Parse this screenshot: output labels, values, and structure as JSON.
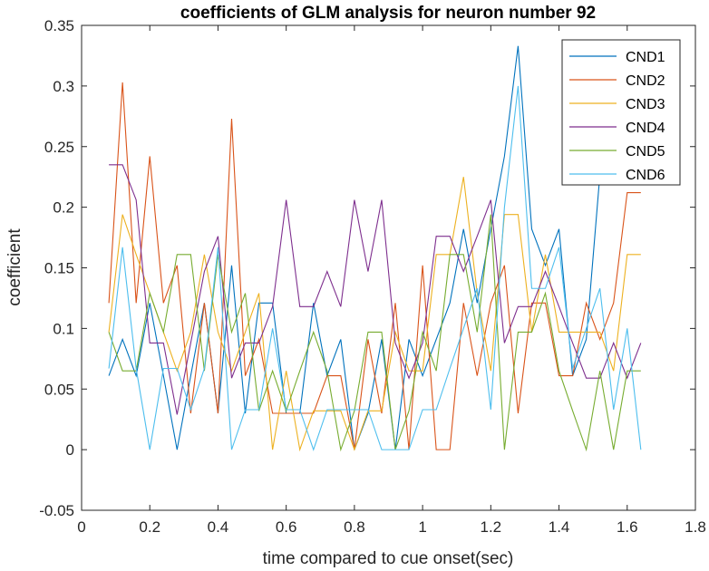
{
  "chart_data": {
    "type": "line",
    "title": "coefficients of GLM analysis for neuron number 92",
    "xlabel": "time compared to cue onset(sec)",
    "ylabel": "coefficient",
    "xlim": [
      0,
      1.8
    ],
    "ylim": [
      -0.05,
      0.35
    ],
    "xticks": [
      0,
      0.2,
      0.4,
      0.6,
      0.8,
      1,
      1.2,
      1.4,
      1.6,
      1.8
    ],
    "yticks": [
      -0.05,
      0,
      0.05,
      0.1,
      0.15,
      0.2,
      0.25,
      0.3,
      0.35
    ],
    "xtick_labels": [
      "0",
      "0.2",
      "0.4",
      "0.6",
      "0.8",
      "1",
      "1.2",
      "1.4",
      "1.6",
      "1.8"
    ],
    "ytick_labels": [
      "-0.05",
      "0",
      "0.05",
      "0.1",
      "0.15",
      "0.2",
      "0.25",
      "0.3",
      "0.35"
    ],
    "grid": false,
    "legend_position": "top-right",
    "x": [
      0.08,
      0.12,
      0.16,
      0.2,
      0.24,
      0.28,
      0.32,
      0.36,
      0.4,
      0.44,
      0.48,
      0.52,
      0.56,
      0.6,
      0.64,
      0.68,
      0.72,
      0.76,
      0.8,
      0.84,
      0.88,
      0.92,
      0.96,
      1.0,
      1.04,
      1.08,
      1.12,
      1.16,
      1.2,
      1.24,
      1.28,
      1.32,
      1.36,
      1.4,
      1.44,
      1.48,
      1.52,
      1.56,
      1.6,
      1.64
    ],
    "series": [
      {
        "name": "CND1",
        "color": "#0072BD",
        "values": [
          0.061,
          0.091,
          0.061,
          0.121,
          0.061,
          0.0,
          0.061,
          0.121,
          0.03,
          0.152,
          0.03,
          0.121,
          0.121,
          0.03,
          0.03,
          0.121,
          0.061,
          0.091,
          0.0,
          0.03,
          0.091,
          0.0,
          0.091,
          0.061,
          0.091,
          0.121,
          0.182,
          0.121,
          0.182,
          0.242,
          0.333,
          0.182,
          0.152,
          0.182,
          0.061,
          0.091,
          0.227,
          0.242,
          0.242,
          0.242
        ]
      },
      {
        "name": "CND2",
        "color": "#D95319",
        "values": [
          0.121,
          0.303,
          0.121,
          0.242,
          0.121,
          0.152,
          0.03,
          0.121,
          0.03,
          0.273,
          0.061,
          0.091,
          0.03,
          0.03,
          0.03,
          0.03,
          0.061,
          0.061,
          0.0,
          0.091,
          0.03,
          0.121,
          0.0,
          0.152,
          0.0,
          0.0,
          0.121,
          0.061,
          0.121,
          0.152,
          0.03,
          0.121,
          0.121,
          0.061,
          0.061,
          0.121,
          0.091,
          0.121,
          0.212,
          0.212
        ]
      },
      {
        "name": "CND3",
        "color": "#EDB120",
        "values": [
          0.097,
          0.194,
          0.161,
          0.129,
          0.097,
          0.065,
          0.097,
          0.161,
          0.097,
          0.065,
          0.097,
          0.129,
          0.0,
          0.065,
          0.0,
          0.032,
          0.032,
          0.032,
          0.0,
          0.032,
          0.032,
          0.097,
          0.065,
          0.065,
          0.161,
          0.161,
          0.225,
          0.129,
          0.065,
          0.194,
          0.194,
          0.097,
          0.161,
          0.097,
          0.097,
          0.097,
          0.097,
          0.065,
          0.161,
          0.161
        ]
      },
      {
        "name": "CND4",
        "color": "#7E2F8E",
        "values": [
          0.235,
          0.235,
          0.206,
          0.088,
          0.088,
          0.029,
          0.088,
          0.147,
          0.176,
          0.059,
          0.088,
          0.088,
          0.118,
          0.206,
          0.118,
          0.118,
          0.147,
          0.118,
          0.206,
          0.147,
          0.206,
          0.088,
          0.059,
          0.088,
          0.176,
          0.176,
          0.147,
          0.176,
          0.206,
          0.088,
          0.118,
          0.118,
          0.147,
          0.118,
          0.088,
          0.059,
          0.059,
          0.088,
          0.059,
          0.088
        ]
      },
      {
        "name": "CND5",
        "color": "#77AC30",
        "values": [
          0.097,
          0.065,
          0.065,
          0.129,
          0.097,
          0.161,
          0.161,
          0.065,
          0.161,
          0.097,
          0.129,
          0.032,
          0.065,
          0.032,
          0.065,
          0.097,
          0.065,
          0.0,
          0.032,
          0.097,
          0.097,
          0.0,
          0.032,
          0.097,
          0.065,
          0.161,
          0.161,
          0.097,
          0.194,
          0.0,
          0.097,
          0.097,
          0.129,
          0.065,
          0.032,
          0.0,
          0.065,
          0.0,
          0.065,
          0.065
        ]
      },
      {
        "name": "CND6",
        "color": "#4DBEEE",
        "values": [
          0.067,
          0.167,
          0.067,
          0.0,
          0.067,
          0.067,
          0.033,
          0.067,
          0.167,
          0.0,
          0.033,
          0.033,
          0.1,
          0.033,
          0.033,
          0.0,
          0.033,
          0.033,
          0.033,
          0.033,
          0.0,
          0.0,
          0.0,
          0.033,
          0.033,
          0.067,
          0.1,
          0.133,
          0.033,
          0.2,
          0.3,
          0.133,
          0.133,
          0.167,
          0.067,
          0.1,
          0.133,
          0.033,
          0.1,
          0.0
        ]
      }
    ]
  }
}
